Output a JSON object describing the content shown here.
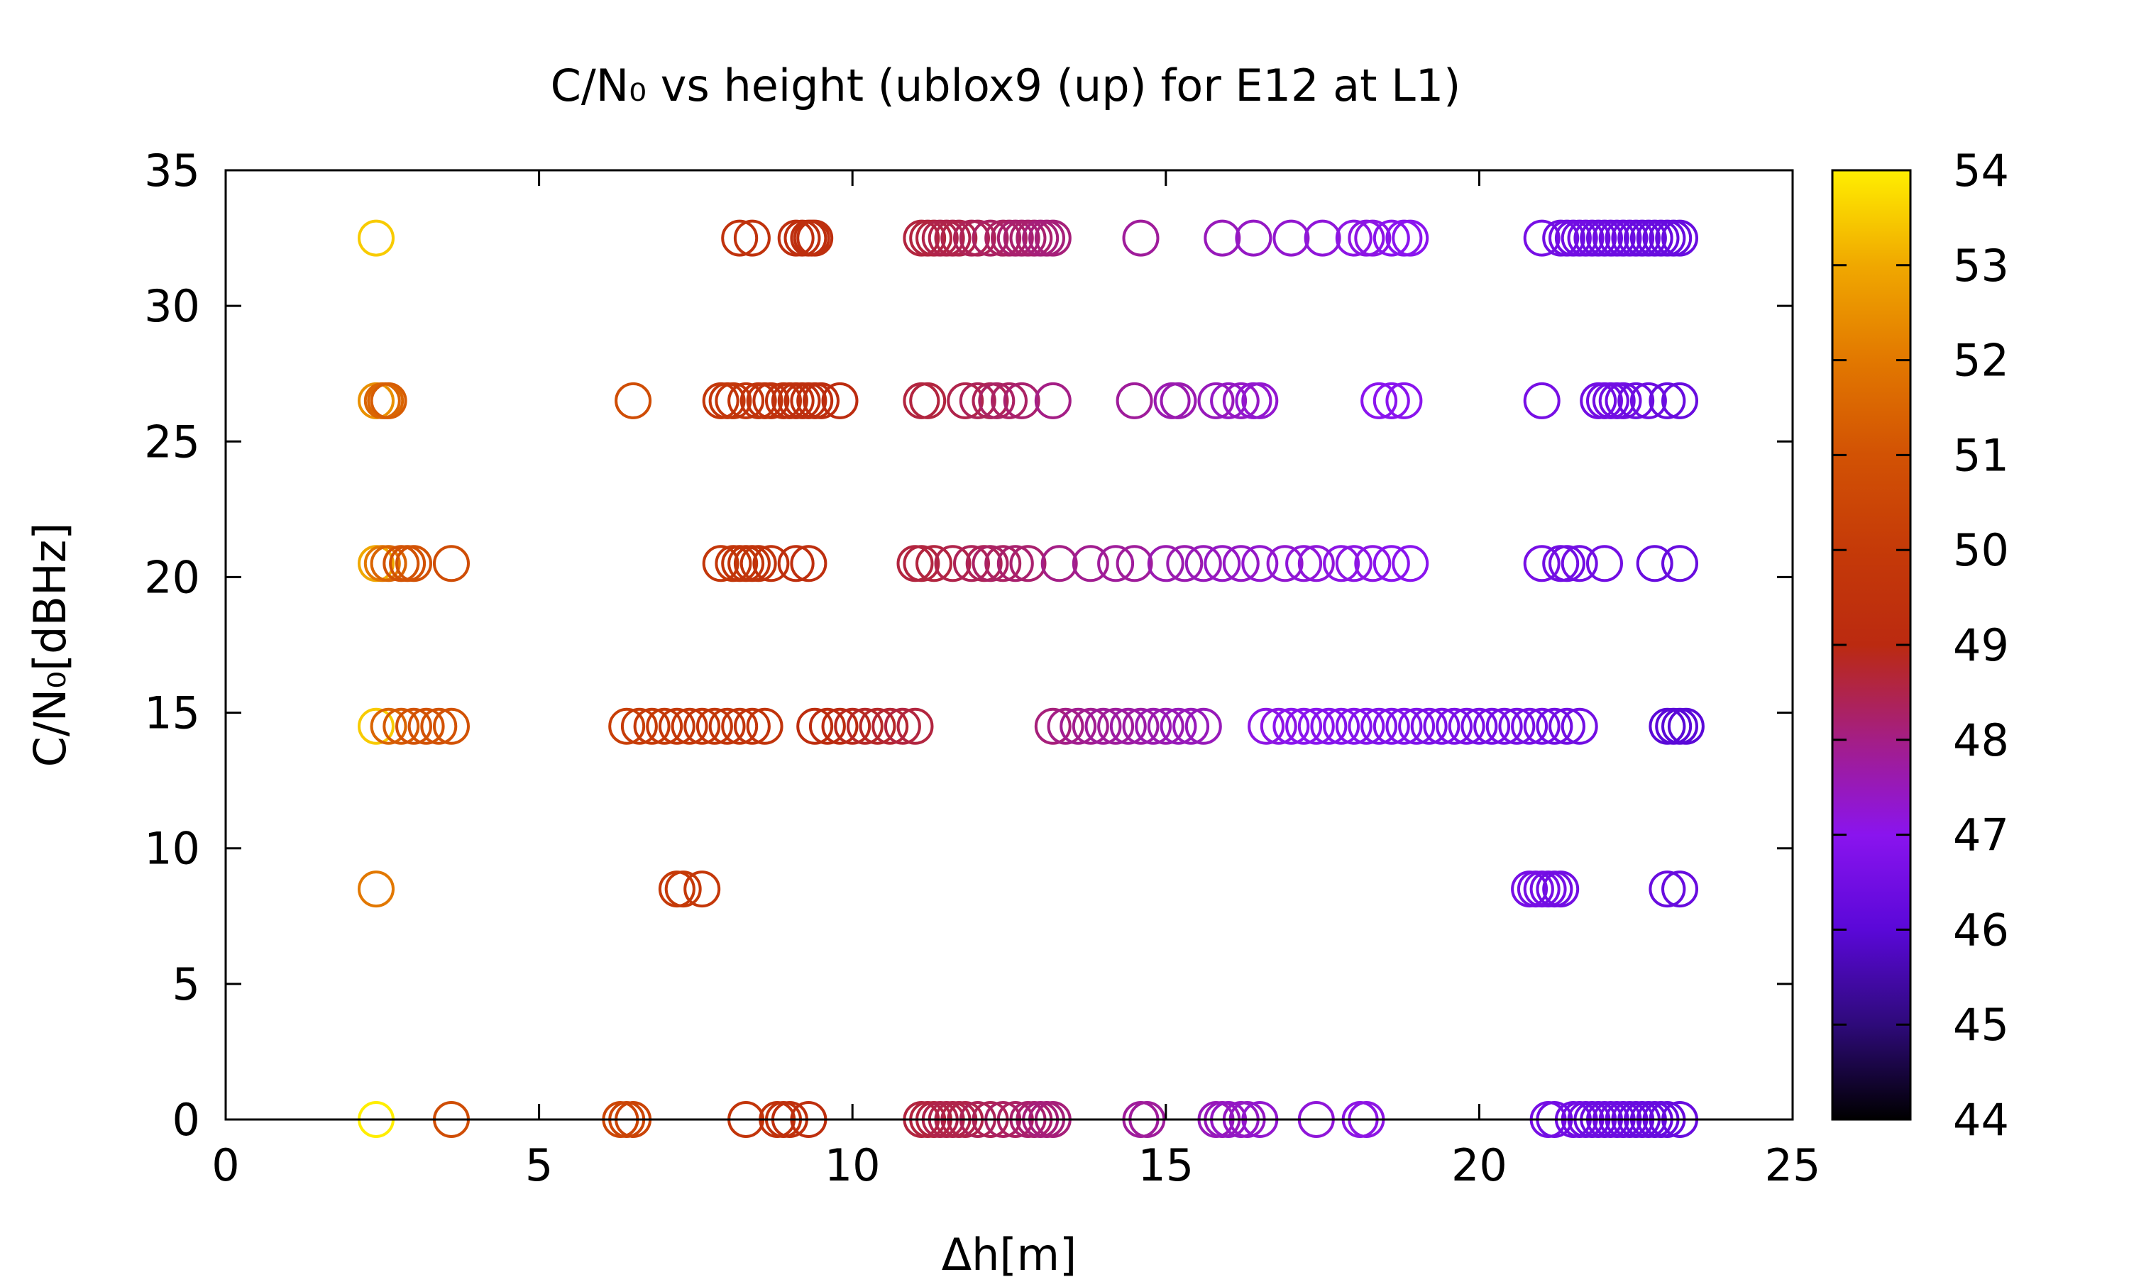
{
  "chart_data": {
    "type": "scatter",
    "title": "C/N₀ vs height (ublox9 (up) for E12 at L1)",
    "xlabel": "Δh[m]",
    "ylabel": "C/N₀[dBHz]",
    "xlim": [
      0,
      25
    ],
    "ylim": [
      0,
      35
    ],
    "xticks": [
      0,
      5,
      10,
      15,
      20,
      25
    ],
    "yticks": [
      0,
      5,
      10,
      15,
      20,
      25,
      30,
      35
    ],
    "marker": "open-circle",
    "grid": false,
    "colorbar": {
      "min": 44,
      "max": 54,
      "ticks": [
        44,
        45,
        46,
        47,
        48,
        49,
        50,
        51,
        52,
        53,
        54
      ],
      "palette": "black-blue-purple-red-orange-yellow",
      "stops": [
        {
          "v": 44,
          "color": "#000000"
        },
        {
          "v": 45,
          "color": "#2e0a7a"
        },
        {
          "v": 46,
          "color": "#5a08d8"
        },
        {
          "v": 47,
          "color": "#8a14ee"
        },
        {
          "v": 48,
          "color": "#a41e86"
        },
        {
          "v": 49,
          "color": "#bb2a10"
        },
        {
          "v": 50,
          "color": "#c53a08"
        },
        {
          "v": 51,
          "color": "#d25204"
        },
        {
          "v": 52,
          "color": "#e27800"
        },
        {
          "v": 53,
          "color": "#f0a800"
        },
        {
          "v": 54,
          "color": "#ffee00"
        }
      ]
    },
    "series": [
      {
        "y": 32.5,
        "x": [
          2.4,
          8.2,
          8.4,
          9.1,
          9.2,
          9.3,
          9.35,
          9.4,
          11.1,
          11.2,
          11.3,
          11.4,
          11.5,
          11.6,
          11.7,
          11.9,
          12.0,
          12.2,
          12.4,
          12.5,
          12.6,
          12.7,
          12.8,
          12.9,
          13.0,
          13.1,
          13.2,
          14.6,
          15.9,
          16.4,
          17.0,
          17.5,
          18.0,
          18.2,
          18.3,
          18.6,
          18.8,
          18.9,
          21.0,
          21.3,
          21.4,
          21.5,
          21.6,
          21.7,
          21.8,
          21.9,
          22.0,
          22.1,
          22.2,
          22.3,
          22.4,
          22.5,
          22.6,
          22.7,
          22.8,
          22.9,
          23.0,
          23.1,
          23.2
        ],
        "c": [
          53.5,
          49.5,
          49.5,
          49.3,
          49.3,
          49.3,
          49.3,
          49.3,
          48.6,
          48.6,
          48.6,
          48.5,
          48.5,
          48.5,
          48.5,
          48.4,
          48.4,
          48.3,
          48.3,
          48.3,
          48.2,
          48.2,
          48.2,
          48.2,
          48.1,
          48.1,
          48.1,
          47.8,
          47.5,
          47.4,
          47.3,
          47.2,
          47.1,
          47.1,
          47.1,
          47.0,
          47.0,
          47.0,
          46.6,
          46.5,
          46.5,
          46.5,
          46.5,
          46.5,
          46.5,
          46.4,
          46.4,
          46.4,
          46.4,
          46.4,
          46.4,
          46.4,
          46.3,
          46.3,
          46.3,
          46.3,
          46.3,
          46.3,
          46.3
        ]
      },
      {
        "y": 26.5,
        "x": [
          2.4,
          2.5,
          2.55,
          2.6,
          6.5,
          7.9,
          8.0,
          8.1,
          8.3,
          8.5,
          8.6,
          8.7,
          8.9,
          9.0,
          9.1,
          9.2,
          9.3,
          9.4,
          9.5,
          9.8,
          11.1,
          11.2,
          11.8,
          12.0,
          12.2,
          12.3,
          12.5,
          12.7,
          13.2,
          14.5,
          15.1,
          15.2,
          15.8,
          16.0,
          16.2,
          16.4,
          16.5,
          18.4,
          18.6,
          18.8,
          21.0,
          21.9,
          22.0,
          22.1,
          22.2,
          22.3,
          22.5,
          22.7,
          23.0,
          23.2
        ],
        "c": [
          52.5,
          51.5,
          51.5,
          51.3,
          50.8,
          49.8,
          49.8,
          49.8,
          49.7,
          49.6,
          49.6,
          49.5,
          49.5,
          49.4,
          49.4,
          49.3,
          49.3,
          49.3,
          49.2,
          49.1,
          48.6,
          48.6,
          48.5,
          48.4,
          48.4,
          48.3,
          48.3,
          48.2,
          48.0,
          47.8,
          47.6,
          47.6,
          47.5,
          47.4,
          47.4,
          47.3,
          47.3,
          47.0,
          47.0,
          47.0,
          46.6,
          46.5,
          46.5,
          46.5,
          46.5,
          46.5,
          46.4,
          46.4,
          46.3,
          46.3
        ]
      },
      {
        "y": 20.5,
        "x": [
          2.4,
          2.5,
          2.6,
          2.8,
          2.9,
          3.0,
          3.6,
          7.9,
          8.1,
          8.2,
          8.3,
          8.4,
          8.5,
          8.7,
          9.1,
          9.3,
          11.0,
          11.1,
          11.3,
          11.6,
          11.9,
          12.1,
          12.2,
          12.4,
          12.6,
          12.8,
          13.3,
          13.8,
          14.2,
          14.5,
          15.0,
          15.3,
          15.6,
          15.9,
          16.2,
          16.5,
          16.9,
          17.2,
          17.4,
          17.8,
          18.0,
          18.3,
          18.6,
          18.9,
          21.0,
          21.3,
          21.4,
          21.6,
          22.0,
          22.8,
          23.2
        ],
        "c": [
          53.0,
          52.0,
          51.5,
          51.0,
          51.0,
          51.0,
          50.8,
          49.8,
          49.8,
          49.7,
          49.7,
          49.6,
          49.6,
          49.5,
          49.3,
          49.3,
          48.6,
          48.6,
          48.6,
          48.5,
          48.4,
          48.4,
          48.3,
          48.3,
          48.2,
          48.2,
          48.0,
          47.9,
          47.8,
          47.8,
          47.6,
          47.6,
          47.5,
          47.4,
          47.4,
          47.3,
          47.3,
          47.2,
          47.2,
          47.1,
          47.1,
          47.1,
          47.0,
          47.0,
          46.6,
          46.5,
          46.5,
          46.5,
          46.5,
          46.3,
          46.3
        ]
      },
      {
        "y": 14.5,
        "x": [
          2.4,
          2.6,
          2.8,
          3.0,
          3.2,
          3.4,
          3.6,
          6.4,
          6.6,
          6.8,
          7.0,
          7.2,
          7.4,
          7.6,
          7.8,
          8.0,
          8.2,
          8.4,
          8.6,
          9.4,
          9.6,
          9.8,
          10.0,
          10.2,
          10.4,
          10.6,
          10.8,
          11.0,
          13.2,
          13.4,
          13.6,
          13.8,
          14.0,
          14.2,
          14.4,
          14.6,
          14.8,
          15.0,
          15.2,
          15.4,
          15.6,
          16.6,
          16.8,
          17.0,
          17.2,
          17.4,
          17.6,
          17.8,
          18.0,
          18.2,
          18.4,
          18.6,
          18.8,
          19.0,
          19.2,
          19.4,
          19.6,
          19.8,
          20.0,
          20.2,
          20.4,
          20.6,
          20.8,
          21.0,
          21.2,
          21.4,
          21.6,
          23.0,
          23.1,
          23.2,
          23.3
        ],
        "c": [
          53.5,
          51.5,
          51.2,
          51.0,
          51.0,
          51.0,
          51.0,
          50.2,
          50.1,
          50.0,
          50.0,
          49.9,
          49.9,
          49.8,
          49.8,
          49.7,
          49.7,
          49.6,
          49.6,
          49.2,
          49.1,
          49.0,
          48.9,
          48.8,
          48.8,
          48.7,
          48.6,
          48.6,
          48.1,
          48.0,
          47.9,
          47.9,
          47.8,
          47.8,
          47.7,
          47.7,
          47.6,
          47.6,
          47.5,
          47.5,
          47.5,
          47.1,
          47.1,
          47.0,
          47.0,
          47.0,
          46.9,
          46.9,
          46.9,
          46.9,
          46.8,
          46.8,
          46.8,
          46.8,
          46.7,
          46.7,
          46.7,
          46.7,
          46.6,
          46.6,
          46.6,
          46.6,
          46.6,
          46.6,
          46.5,
          46.5,
          46.5,
          46.0,
          46.0,
          46.0,
          46.0
        ]
      },
      {
        "y": 8.5,
        "x": [
          2.4,
          7.2,
          7.3,
          7.6,
          20.8,
          20.9,
          21.0,
          21.1,
          21.2,
          21.3,
          23.0,
          23.2
        ],
        "c": [
          52.0,
          50.0,
          50.0,
          49.9,
          46.6,
          46.6,
          46.6,
          46.6,
          46.5,
          46.5,
          46.3,
          46.3
        ]
      },
      {
        "y": 0,
        "x": [
          2.4,
          3.6,
          6.3,
          6.4,
          6.5,
          8.3,
          8.8,
          8.9,
          9.0,
          9.3,
          11.1,
          11.2,
          11.3,
          11.4,
          11.5,
          11.6,
          11.7,
          11.8,
          12.0,
          12.2,
          12.4,
          12.6,
          12.8,
          12.9,
          13.0,
          13.1,
          13.2,
          14.6,
          14.7,
          15.8,
          15.9,
          16.0,
          16.2,
          16.3,
          16.5,
          17.4,
          18.1,
          18.2,
          21.1,
          21.2,
          21.5,
          21.6,
          21.7,
          21.8,
          21.9,
          22.0,
          22.1,
          22.2,
          22.3,
          22.4,
          22.5,
          22.6,
          22.7,
          22.8,
          22.9,
          23.0,
          23.2
        ],
        "c": [
          54.0,
          50.8,
          50.5,
          50.5,
          50.4,
          49.7,
          49.5,
          49.5,
          49.4,
          49.3,
          48.6,
          48.6,
          48.6,
          48.5,
          48.5,
          48.5,
          48.5,
          48.5,
          48.4,
          48.4,
          48.3,
          48.3,
          48.2,
          48.2,
          48.1,
          48.1,
          48.1,
          47.8,
          47.8,
          47.5,
          47.5,
          47.4,
          47.4,
          47.4,
          47.3,
          47.2,
          47.1,
          47.1,
          46.6,
          46.5,
          46.5,
          46.5,
          46.5,
          46.4,
          46.4,
          46.4,
          46.4,
          46.4,
          46.4,
          46.4,
          46.3,
          46.3,
          46.3,
          46.3,
          46.3,
          46.3,
          46.3
        ]
      }
    ]
  }
}
